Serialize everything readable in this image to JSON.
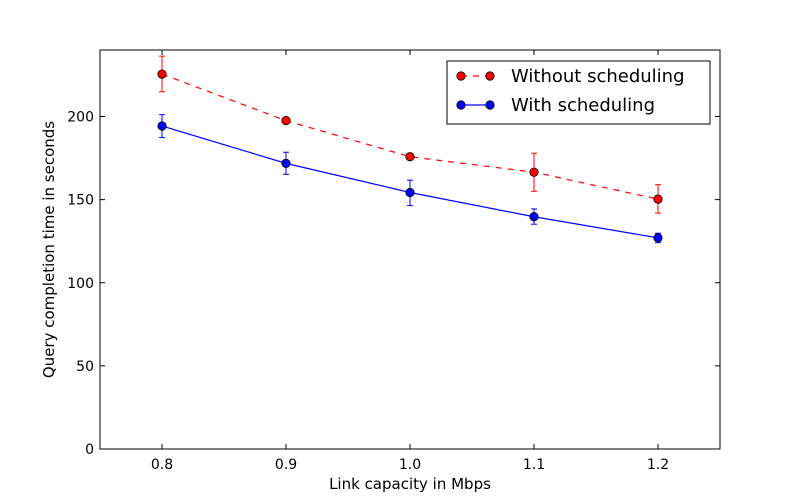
{
  "chart_data": {
    "type": "line",
    "xlabel": "Link capacity in Mbps",
    "ylabel": "Query completion time in seconds",
    "xlim": [
      0.75,
      1.25
    ],
    "ylim": [
      0,
      240
    ],
    "xticks": [
      "0.8",
      "0.9",
      "1.0",
      "1.1",
      "1.2"
    ],
    "yticks": [
      "0",
      "50",
      "100",
      "150",
      "200"
    ],
    "x": [
      0.8,
      0.9,
      1.0,
      1.1,
      1.2
    ],
    "grid": false,
    "legend_position": "top-right",
    "series": [
      {
        "name": "Without scheduling",
        "color": "#ff0000",
        "line_style": "dashed",
        "values": [
          225.5,
          197.5,
          175.8,
          166.5,
          150.3
        ],
        "err_low": [
          214.9,
          196.0,
          175.0,
          155.0,
          141.9
        ],
        "err_high": [
          236.3,
          199.1,
          176.7,
          177.9,
          159.0
        ]
      },
      {
        "name": "With scheduling",
        "color": "#0000ff",
        "line_style": "solid",
        "values": [
          194.3,
          171.8,
          154.3,
          139.7,
          127.0
        ],
        "err_low": [
          187.3,
          165.2,
          146.4,
          135.2,
          124.1
        ],
        "err_high": [
          201.1,
          178.5,
          161.7,
          144.4,
          129.8
        ]
      }
    ]
  }
}
